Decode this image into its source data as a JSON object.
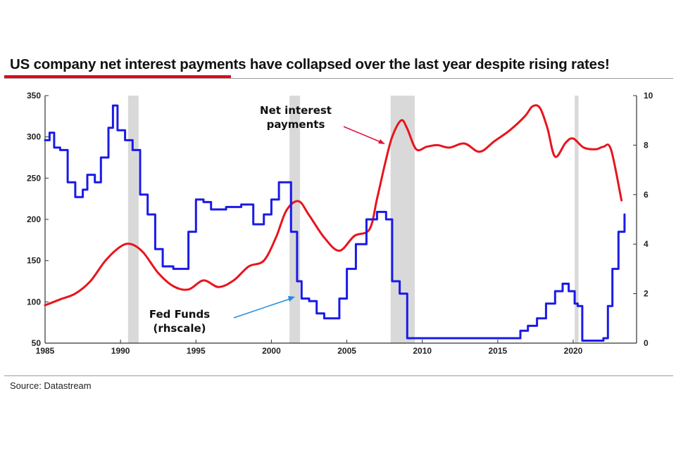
{
  "page": {
    "title": "US company net interest payments have collapsed over the last year despite rising rates!",
    "source": "Source: Datastream",
    "accent_color": "#e0001b"
  },
  "chart_data": {
    "type": "line",
    "title": "US company net interest payments have collapsed over the last year despite rising rates!",
    "xlim": [
      1985,
      2024.2
    ],
    "ylim_left": [
      50,
      350
    ],
    "ylim_right": [
      0,
      10
    ],
    "x_ticks": [
      "1985",
      "1990",
      "1995",
      "2000",
      "2005",
      "2010",
      "2015",
      "2020"
    ],
    "y_left_ticks": [
      "50",
      "100",
      "150",
      "200",
      "250",
      "300",
      "350"
    ],
    "y_right_ticks": [
      "0",
      "2",
      "4",
      "6",
      "8",
      "10"
    ],
    "grid": false,
    "recessions": [
      [
        1990.5,
        1991.2
      ],
      [
        2001.2,
        2001.9
      ],
      [
        2007.9,
        2009.5
      ],
      [
        2020.1,
        2020.35
      ]
    ],
    "series": [
      {
        "name": "Net interest payments",
        "axis": "left",
        "color": "#e8141c",
        "x": [
          1985,
          1986,
          1987,
          1988,
          1989,
          1990,
          1990.7,
          1991.5,
          1992.5,
          1993.5,
          1994.5,
          1995.5,
          1996.5,
          1997.5,
          1998.5,
          1999.5,
          2000.3,
          2001,
          2001.8,
          2002.5,
          2003.5,
          2004.5,
          2005.5,
          2006.5,
          2007,
          2007.5,
          2008,
          2008.6,
          2009,
          2009.6,
          2010.3,
          2011,
          2011.8,
          2012.8,
          2013.8,
          2014.8,
          2015.8,
          2016.8,
          2017.3,
          2017.8,
          2018.3,
          2018.8,
          2019.5,
          2020,
          2020.7,
          2021.5,
          2022,
          2022.5,
          2023.2
        ],
        "y": [
          96,
          103,
          110,
          125,
          150,
          167,
          170,
          160,
          135,
          119,
          115,
          126,
          118,
          126,
          143,
          150,
          178,
          211,
          222,
          205,
          178,
          162,
          180,
          188,
          225,
          265,
          300,
          320,
          310,
          285,
          288,
          290,
          287,
          292,
          282,
          295,
          308,
          325,
          337,
          335,
          310,
          276,
          293,
          298,
          287,
          285,
          288,
          285,
          223
        ]
      },
      {
        "name": "Fed Funds (rhscale)",
        "axis": "right",
        "color": "#1a1ae8",
        "x": [
          1985,
          1985.3,
          1985.6,
          1986,
          1986.5,
          1987,
          1987.5,
          1987.8,
          1988.3,
          1988.7,
          1989.2,
          1989.5,
          1989.8,
          1990.3,
          1990.8,
          1991.3,
          1991.8,
          1992.3,
          1992.8,
          1993.5,
          1994,
          1994.5,
          1995,
          1995.5,
          1996,
          1997,
          1998,
          1998.8,
          1999.5,
          2000,
          2000.5,
          2000.9,
          2001.3,
          2001.7,
          2002,
          2002.5,
          2003,
          2003.5,
          2004,
          2004.5,
          2005,
          2005.6,
          2006.3,
          2007,
          2007.6,
          2008,
          2008.5,
          2009,
          2009.5,
          2010,
          2012,
          2014,
          2015.9,
          2016.5,
          2017,
          2017.6,
          2018.2,
          2018.8,
          2019.3,
          2019.7,
          2020.1,
          2020.3,
          2020.6,
          2021.5,
          2022,
          2022.3,
          2022.6,
          2023,
          2023.4
        ],
        "y": [
          8.2,
          8.5,
          7.9,
          7.8,
          6.5,
          5.9,
          6.2,
          6.8,
          6.5,
          7.5,
          8.7,
          9.6,
          8.6,
          8.2,
          7.8,
          6.0,
          5.2,
          3.8,
          3.1,
          3.0,
          3.0,
          4.5,
          5.8,
          5.7,
          5.4,
          5.5,
          5.6,
          4.8,
          5.2,
          5.8,
          6.5,
          6.5,
          4.5,
          2.5,
          1.8,
          1.7,
          1.2,
          1.0,
          1.0,
          1.8,
          3.0,
          4.0,
          5.0,
          5.3,
          5.0,
          2.5,
          2.0,
          0.2,
          0.2,
          0.2,
          0.2,
          0.2,
          0.2,
          0.5,
          0.7,
          1.0,
          1.6,
          2.1,
          2.4,
          2.1,
          1.6,
          1.5,
          0.1,
          0.1,
          0.2,
          1.5,
          3.0,
          4.5,
          5.2
        ]
      }
    ],
    "annotations": [
      {
        "lines": [
          "Net interest",
          "payments"
        ]
      },
      {
        "lines": [
          "Fed Funds",
          "(rhscale)"
        ]
      }
    ]
  }
}
